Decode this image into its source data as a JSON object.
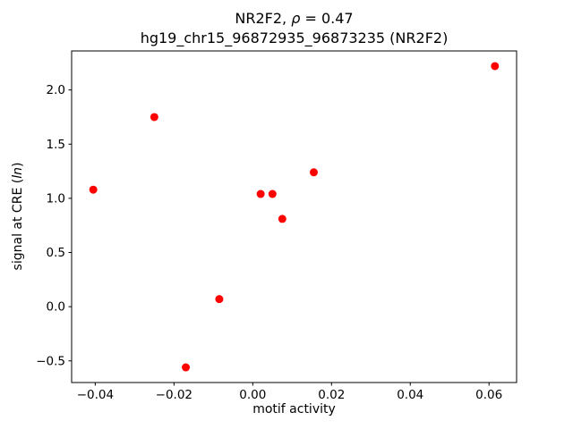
{
  "figure": {
    "title_pre": "NR2F2, ",
    "title_rho": "ρ",
    "title_post": " = 0.47",
    "title_line2": "hg19_chr15_96872935_96873235 (NR2F2)",
    "xlabel": "motif activity",
    "ylabel_pre": "signal at CRE (",
    "ylabel_italic": "ln",
    "ylabel_post": ")"
  },
  "chart_data": {
    "type": "scatter",
    "title": "NR2F2, ρ = 0.47\nhg19_chr15_96872935_96873235 (NR2F2)",
    "xlabel": "motif activity",
    "ylabel": "signal at CRE (ln)",
    "marker_color": "#ff0000",
    "marker_size_px": 4.5,
    "axes_color": "#000000",
    "background": "#ffffff",
    "grid": false,
    "legend": null,
    "xlim": [
      -0.046,
      0.067
    ],
    "ylim": [
      -0.7,
      2.36
    ],
    "xticks": [
      -0.04,
      -0.02,
      0.0,
      0.02,
      0.04,
      0.06
    ],
    "xtick_labels": [
      "−0.04",
      "−0.02",
      "0.00",
      "0.02",
      "0.04",
      "0.06"
    ],
    "yticks": [
      -0.5,
      0.0,
      0.5,
      1.0,
      1.5,
      2.0
    ],
    "ytick_labels": [
      "−0.5",
      "0.0",
      "0.5",
      "1.0",
      "1.5",
      "2.0"
    ],
    "points": [
      {
        "x": -0.0405,
        "y": 1.08
      },
      {
        "x": -0.025,
        "y": 1.75
      },
      {
        "x": -0.017,
        "y": -0.56
      },
      {
        "x": -0.0085,
        "y": 0.07
      },
      {
        "x": 0.002,
        "y": 1.04
      },
      {
        "x": 0.005,
        "y": 1.04
      },
      {
        "x": 0.0075,
        "y": 0.81
      },
      {
        "x": 0.0155,
        "y": 1.24
      },
      {
        "x": 0.0615,
        "y": 2.22
      }
    ]
  }
}
